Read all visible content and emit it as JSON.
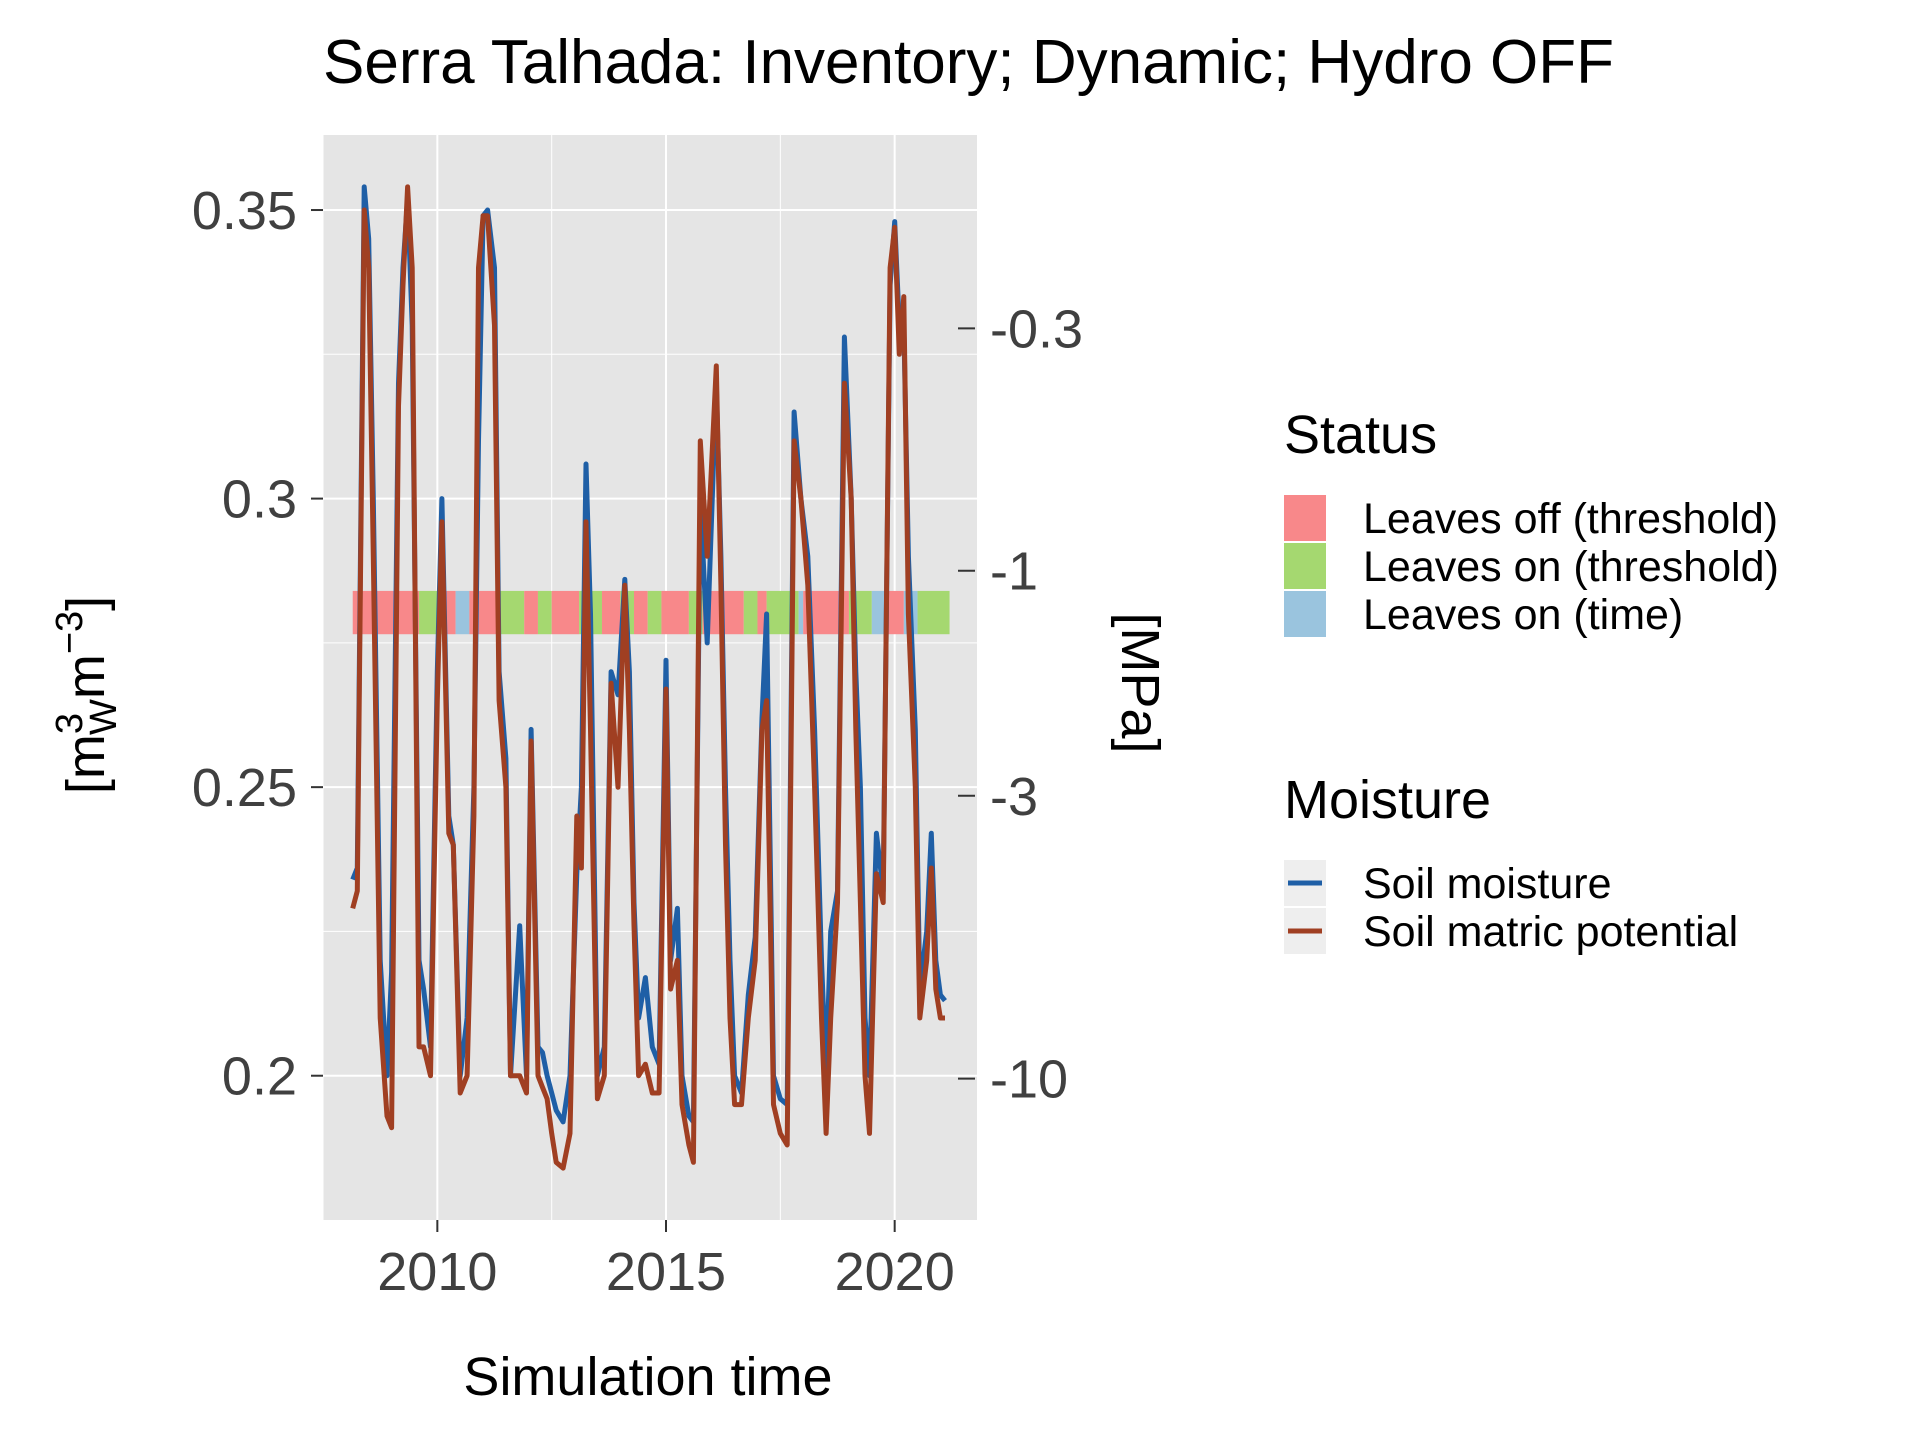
{
  "chart_data": {
    "type": "line",
    "title": "Serra Talhada: Inventory; Dynamic; Hydro OFF",
    "xlabel": "Simulation time",
    "ylabel_left": [
      "[m",
      "3",
      "W",
      "m",
      "−3",
      "]"
    ],
    "ylabel_right": "[MPa]",
    "xlim": [
      2007.5,
      2021.8
    ],
    "ylim": [
      0.175,
      0.363
    ],
    "x_ticks": [
      2010,
      2015,
      2020
    ],
    "x_tick_labels": [
      "2010",
      "2015",
      "2020"
    ],
    "y_ticks": [
      0.2,
      0.25,
      0.3,
      0.35
    ],
    "y_tick_labels": [
      "0.2",
      "0.25",
      "0.3",
      "0.35"
    ],
    "y2_ticks": [
      -10,
      -3,
      -1,
      -0.3
    ],
    "y2_tick_labels": [
      "-10",
      "-3",
      "-1",
      "-0.3"
    ],
    "y2_tick_positions_in_left_units": [
      0.1995,
      0.2485,
      0.2875,
      0.3295
    ],
    "grid": true,
    "legend_position": "right",
    "colors": {
      "panel": "#e5e5e5",
      "grid": "#ffffff",
      "soil_moisture": "#1f5fa6",
      "soil_matric_potential": "#a03f22",
      "leaves_off_threshold": "#f8888a",
      "leaves_on_threshold": "#a5d870",
      "leaves_on_time": "#9ac4de"
    },
    "status_band": {
      "y_range": [
        0.2765,
        0.284
      ],
      "segments": [
        {
          "start": 2008.15,
          "end": 2009.6,
          "status": "leaves_off_threshold"
        },
        {
          "start": 2009.6,
          "end": 2010.1,
          "status": "leaves_on_threshold"
        },
        {
          "start": 2010.1,
          "end": 2010.4,
          "status": "leaves_off_threshold"
        },
        {
          "start": 2010.4,
          "end": 2010.7,
          "status": "leaves_on_time"
        },
        {
          "start": 2010.7,
          "end": 2011.3,
          "status": "leaves_off_threshold"
        },
        {
          "start": 2011.3,
          "end": 2011.9,
          "status": "leaves_on_threshold"
        },
        {
          "start": 2011.9,
          "end": 2012.2,
          "status": "leaves_off_threshold"
        },
        {
          "start": 2012.2,
          "end": 2012.5,
          "status": "leaves_on_threshold"
        },
        {
          "start": 2012.5,
          "end": 2013.1,
          "status": "leaves_off_threshold"
        },
        {
          "start": 2013.1,
          "end": 2013.6,
          "status": "leaves_on_threshold"
        },
        {
          "start": 2013.6,
          "end": 2014.0,
          "status": "leaves_off_threshold"
        },
        {
          "start": 2014.0,
          "end": 2014.3,
          "status": "leaves_on_threshold"
        },
        {
          "start": 2014.3,
          "end": 2014.6,
          "status": "leaves_off_threshold"
        },
        {
          "start": 2014.6,
          "end": 2014.9,
          "status": "leaves_on_threshold"
        },
        {
          "start": 2014.9,
          "end": 2015.5,
          "status": "leaves_off_threshold"
        },
        {
          "start": 2015.5,
          "end": 2015.8,
          "status": "leaves_on_threshold"
        },
        {
          "start": 2015.8,
          "end": 2016.7,
          "status": "leaves_off_threshold"
        },
        {
          "start": 2016.7,
          "end": 2017.0,
          "status": "leaves_on_threshold"
        },
        {
          "start": 2017.0,
          "end": 2017.2,
          "status": "leaves_off_threshold"
        },
        {
          "start": 2017.2,
          "end": 2017.9,
          "status": "leaves_on_threshold"
        },
        {
          "start": 2017.9,
          "end": 2018.0,
          "status": "leaves_on_time"
        },
        {
          "start": 2018.0,
          "end": 2019.0,
          "status": "leaves_off_threshold"
        },
        {
          "start": 2019.0,
          "end": 2019.5,
          "status": "leaves_on_threshold"
        },
        {
          "start": 2019.5,
          "end": 2019.8,
          "status": "leaves_on_time"
        },
        {
          "start": 2019.8,
          "end": 2020.2,
          "status": "leaves_off_threshold"
        },
        {
          "start": 2020.2,
          "end": 2020.5,
          "status": "leaves_on_time"
        },
        {
          "start": 2020.5,
          "end": 2021.2,
          "status": "leaves_on_threshold"
        }
      ]
    },
    "series": [
      {
        "name": "Soil moisture",
        "color_key": "soil_moisture",
        "x": [
          2008.15,
          2008.25,
          2008.4,
          2008.5,
          2008.6,
          2008.75,
          2008.9,
          2009.0,
          2009.15,
          2009.25,
          2009.35,
          2009.45,
          2009.6,
          2009.7,
          2009.85,
          2010.0,
          2010.1,
          2010.25,
          2010.35,
          2010.5,
          2010.65,
          2010.8,
          2010.9,
          2011.0,
          2011.1,
          2011.25,
          2011.35,
          2011.5,
          2011.6,
          2011.8,
          2011.95,
          2012.05,
          2012.2,
          2012.3,
          2012.4,
          2012.5,
          2012.6,
          2012.75,
          2012.9,
          2013.05,
          2013.15,
          2013.25,
          2013.35,
          2013.5,
          2013.65,
          2013.8,
          2013.95,
          2014.1,
          2014.2,
          2014.3,
          2014.4,
          2014.55,
          2014.7,
          2014.85,
          2015.0,
          2015.1,
          2015.25,
          2015.35,
          2015.5,
          2015.6,
          2015.75,
          2015.9,
          2016.1,
          2016.2,
          2016.3,
          2016.4,
          2016.5,
          2016.65,
          2016.8,
          2016.95,
          2017.1,
          2017.2,
          2017.35,
          2017.5,
          2017.65,
          2017.8,
          2017.95,
          2018.1,
          2018.25,
          2018.4,
          2018.5,
          2018.6,
          2018.75,
          2018.9,
          2019.05,
          2019.15,
          2019.25,
          2019.35,
          2019.45,
          2019.6,
          2019.75,
          2019.9,
          2020.0,
          2020.1,
          2020.2,
          2020.3,
          2020.45,
          2020.55,
          2020.7,
          2020.8,
          2020.9,
          2021.0,
          2021.1
        ],
        "y": [
          0.234,
          0.236,
          0.354,
          0.345,
          0.3,
          0.22,
          0.2,
          0.218,
          0.32,
          0.34,
          0.352,
          0.33,
          0.22,
          0.215,
          0.205,
          0.27,
          0.3,
          0.245,
          0.24,
          0.2,
          0.21,
          0.25,
          0.31,
          0.349,
          0.35,
          0.34,
          0.27,
          0.255,
          0.2,
          0.226,
          0.2,
          0.26,
          0.205,
          0.204,
          0.2,
          0.197,
          0.194,
          0.192,
          0.2,
          0.235,
          0.25,
          0.306,
          0.28,
          0.2,
          0.205,
          0.27,
          0.266,
          0.286,
          0.27,
          0.23,
          0.21,
          0.217,
          0.205,
          0.202,
          0.272,
          0.22,
          0.229,
          0.2,
          0.193,
          0.192,
          0.3,
          0.275,
          0.32,
          0.29,
          0.25,
          0.22,
          0.2,
          0.197,
          0.214,
          0.224,
          0.262,
          0.28,
          0.2,
          0.196,
          0.195,
          0.315,
          0.3,
          0.29,
          0.26,
          0.22,
          0.2,
          0.225,
          0.232,
          0.328,
          0.3,
          0.27,
          0.25,
          0.21,
          0.2,
          0.242,
          0.232,
          0.337,
          0.348,
          0.33,
          0.33,
          0.29,
          0.26,
          0.215,
          0.225,
          0.242,
          0.22,
          0.214,
          0.213
        ]
      },
      {
        "name": "Soil matric potential",
        "color_key": "soil_matric_potential",
        "x": [
          2008.15,
          2008.25,
          2008.4,
          2008.5,
          2008.6,
          2008.75,
          2008.9,
          2009.0,
          2009.15,
          2009.25,
          2009.35,
          2009.45,
          2009.6,
          2009.7,
          2009.85,
          2010.0,
          2010.1,
          2010.25,
          2010.35,
          2010.5,
          2010.65,
          2010.8,
          2010.9,
          2011.0,
          2011.1,
          2011.25,
          2011.35,
          2011.5,
          2011.6,
          2011.8,
          2011.95,
          2012.05,
          2012.2,
          2012.3,
          2012.4,
          2012.5,
          2012.6,
          2012.75,
          2012.9,
          2013.05,
          2013.15,
          2013.25,
          2013.35,
          2013.5,
          2013.65,
          2013.8,
          2013.95,
          2014.1,
          2014.2,
          2014.3,
          2014.4,
          2014.55,
          2014.7,
          2014.85,
          2015.0,
          2015.1,
          2015.25,
          2015.35,
          2015.5,
          2015.6,
          2015.75,
          2015.9,
          2016.1,
          2016.2,
          2016.3,
          2016.4,
          2016.5,
          2016.65,
          2016.8,
          2016.95,
          2017.1,
          2017.2,
          2017.35,
          2017.5,
          2017.65,
          2017.8,
          2017.95,
          2018.1,
          2018.25,
          2018.4,
          2018.5,
          2018.6,
          2018.75,
          2018.9,
          2019.05,
          2019.15,
          2019.25,
          2019.35,
          2019.45,
          2019.6,
          2019.75,
          2019.9,
          2020.0,
          2020.1,
          2020.2,
          2020.3,
          2020.45,
          2020.55,
          2020.7,
          2020.8,
          2020.9,
          2021.0,
          2021.1
        ],
        "y": [
          0.229,
          0.232,
          0.35,
          0.34,
          0.29,
          0.21,
          0.193,
          0.191,
          0.316,
          0.337,
          0.354,
          0.34,
          0.205,
          0.205,
          0.2,
          0.265,
          0.296,
          0.242,
          0.24,
          0.197,
          0.2,
          0.245,
          0.34,
          0.349,
          0.349,
          0.33,
          0.265,
          0.25,
          0.2,
          0.2,
          0.197,
          0.258,
          0.2,
          0.198,
          0.196,
          0.19,
          0.185,
          0.184,
          0.19,
          0.245,
          0.236,
          0.296,
          0.26,
          0.196,
          0.2,
          0.268,
          0.25,
          0.285,
          0.26,
          0.226,
          0.2,
          0.202,
          0.197,
          0.197,
          0.267,
          0.215,
          0.22,
          0.195,
          0.188,
          0.185,
          0.31,
          0.29,
          0.323,
          0.285,
          0.24,
          0.21,
          0.195,
          0.195,
          0.21,
          0.22,
          0.26,
          0.265,
          0.195,
          0.19,
          0.188,
          0.31,
          0.3,
          0.285,
          0.25,
          0.21,
          0.19,
          0.21,
          0.23,
          0.32,
          0.3,
          0.26,
          0.23,
          0.2,
          0.19,
          0.235,
          0.23,
          0.34,
          0.347,
          0.325,
          0.335,
          0.28,
          0.25,
          0.21,
          0.22,
          0.236,
          0.215,
          0.21,
          0.21
        ]
      }
    ],
    "legend": {
      "status_title": "Status",
      "status_items": [
        {
          "label": "Leaves off (threshold)",
          "color_key": "leaves_off_threshold"
        },
        {
          "label": "Leaves on (threshold)",
          "color_key": "leaves_on_threshold"
        },
        {
          "label": "Leaves on (time)",
          "color_key": "leaves_on_time"
        }
      ],
      "moisture_title": "Moisture",
      "moisture_items": [
        {
          "label": "Soil moisture",
          "color_key": "soil_moisture"
        },
        {
          "label": "Soil matric potential",
          "color_key": "soil_matric_potential"
        }
      ]
    }
  }
}
